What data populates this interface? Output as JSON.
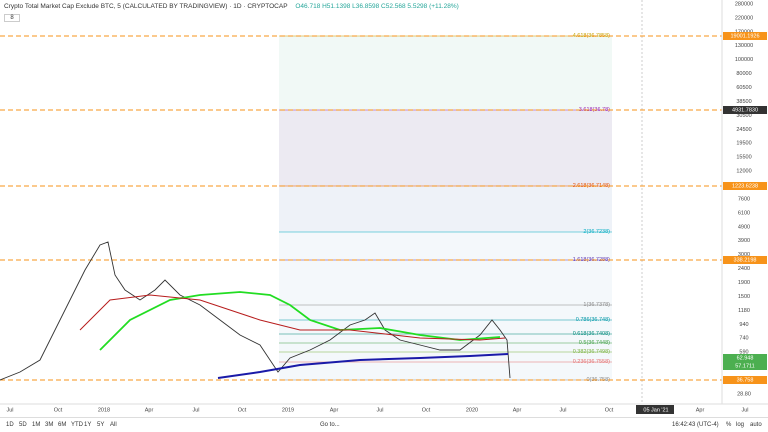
{
  "header": {
    "title": "Crypto Total Market Cap Exclude BTC, 5 (CALCULATED BY TRADINGVIEW) · 1D · CRYPTOCAP",
    "ohlc": "O46.718 H51.1398 L36.8598 C52.568 5.5298 (+11.28%)",
    "toggle": "8"
  },
  "price_axis": [
    "280000",
    "220000",
    "170000",
    "130000",
    "100000",
    "80000",
    "60500",
    "38500",
    "30500",
    "24500",
    "19500",
    "15500",
    "12000",
    "9600",
    "7600",
    "6100",
    "4900",
    "3900",
    "3000",
    "2400",
    "1900",
    "1500",
    "1180",
    "940",
    "740",
    "590",
    "470",
    "370",
    "28.80"
  ],
  "price_tags": [
    {
      "label": "19001.1926",
      "color": "#f7931a"
    },
    {
      "label": "4931.7830",
      "color": "#333"
    },
    {
      "label": "1223.6238",
      "color": "#f7931a"
    },
    {
      "label": "338.2198",
      "color": "#f7931a"
    },
    {
      "label": "62.948",
      "color": "#4caf50"
    },
    {
      "label": "57.1711",
      "color": "#4caf50"
    },
    {
      "label": "36.758",
      "color": "#f7931a"
    }
  ],
  "time_axis": [
    "Jul",
    "Oct",
    "2018",
    "Apr",
    "Jul",
    "Oct",
    "2019",
    "Apr",
    "Jul",
    "Oct",
    "2020",
    "Apr",
    "Jul",
    "Oct",
    "05 Jan '21",
    "Apr",
    "Jul"
  ],
  "fib_levels": [
    {
      "label": "4.618(36.7858)",
      "color": "#c8a000"
    },
    {
      "label": "3.618(36.78)",
      "color": "#9c27b0"
    },
    {
      "label": "2.618(36.7148)",
      "color": "#e65100"
    },
    {
      "label": "2(36.7238)",
      "color": "#00acc1"
    },
    {
      "label": "1.618(36.7288)",
      "color": "#5e35b1"
    },
    {
      "label": "1(36.7378)",
      "color": "#888"
    },
    {
      "label": "0.786(36.748)",
      "color": "#0097a7"
    },
    {
      "label": "0.618(36.7408)",
      "color": "#00897b"
    },
    {
      "label": "0.5(36.7448)",
      "color": "#43a047"
    },
    {
      "label": "0.382(36.7498)",
      "color": "#7cb342"
    },
    {
      "label": "0.236(36.7558)",
      "color": "#e57373"
    },
    {
      "label": "0(36.758)",
      "color": "#888"
    }
  ],
  "toolbar": {
    "ranges": [
      "1D",
      "5D",
      "1M",
      "3M",
      "6M",
      "YTD",
      "1Y",
      "5Y",
      "All"
    ],
    "goto": "Go to...",
    "clock": "16:42:43 (UTC-4)",
    "percent": "%",
    "log": "log",
    "auto": "auto"
  }
}
